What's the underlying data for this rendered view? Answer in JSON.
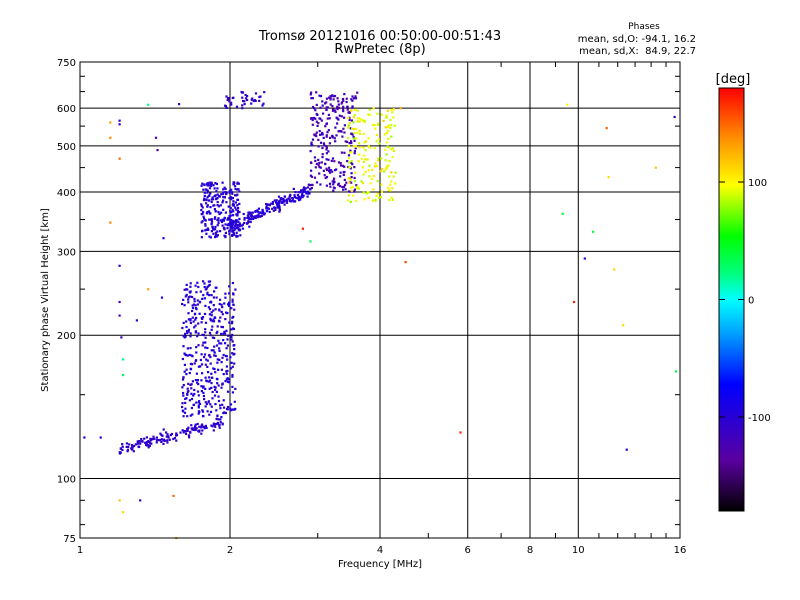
{
  "chart_data": {
    "type": "scatter",
    "title": "Tromsø 20121016 00:50:00-00:51:43",
    "subtitle": "RwPretec (8p)",
    "xlabel": "Frequency [MHz]",
    "ylabel": "Stationary phase Virtual Height [km]",
    "x_scale": "log",
    "y_scale": "log",
    "xlim": [
      1,
      16
    ],
    "ylim": [
      75,
      750
    ],
    "x_ticks": [
      1,
      2,
      4,
      6,
      8,
      10,
      16
    ],
    "y_ticks": [
      75,
      100,
      200,
      300,
      400,
      500,
      600,
      750
    ],
    "grid": true,
    "stats": {
      "heading": "Phases",
      "o_line": "mean, sd,O: -94.1, 16.2",
      "x_line": "mean, sd,X:  84.9, 22.7"
    },
    "colorbar": {
      "label": "[deg]",
      "range": [
        -180,
        180
      ],
      "ticks": [
        100,
        0,
        -100
      ],
      "tick_labels": [
        "100",
        "0",
        "-100"
      ]
    },
    "point_groups": [
      {
        "name": "trace-E-low",
        "x_range": [
          1.2,
          1.95
        ],
        "y_range": [
          112,
          135
        ],
        "n": 160,
        "phase": -105,
        "phase_sd": 10
      },
      {
        "name": "trace-F1-rise",
        "x_range": [
          1.6,
          2.05
        ],
        "y_range": [
          135,
          260
        ],
        "n": 420,
        "phase": -100,
        "phase_sd": 15
      },
      {
        "name": "trace-F1-band",
        "x_range": [
          1.75,
          2.1
        ],
        "y_range": [
          320,
          420
        ],
        "n": 260,
        "phase": -100,
        "phase_sd": 12
      },
      {
        "name": "trace-F2-shelf",
        "x_range": [
          2.0,
          2.9
        ],
        "y_range": [
          330,
          420
        ],
        "n": 200,
        "phase": -100,
        "phase_sd": 12
      },
      {
        "name": "trace-F2-cusp",
        "x_range": [
          2.9,
          3.6
        ],
        "y_range": [
          400,
          650
        ],
        "n": 260,
        "phase": -120,
        "phase_sd": 15
      },
      {
        "name": "trace-X-mode",
        "x_range": [
          3.45,
          4.3
        ],
        "y_range": [
          380,
          600
        ],
        "n": 180,
        "phase": 95,
        "phase_sd": 15
      },
      {
        "name": "trace-high-cluster",
        "x_range": [
          1.95,
          2.35
        ],
        "y_range": [
          600,
          650
        ],
        "n": 40,
        "phase": -105,
        "phase_sd": 12
      }
    ],
    "isolated_points": [
      {
        "x": 1.2,
        "y": 565,
        "phase": -110
      },
      {
        "x": 1.2,
        "y": 555,
        "phase": -110
      },
      {
        "x": 1.15,
        "y": 560,
        "phase": 130
      },
      {
        "x": 1.15,
        "y": 520,
        "phase": 140
      },
      {
        "x": 1.2,
        "y": 470,
        "phase": 150
      },
      {
        "x": 1.37,
        "y": 610,
        "phase": 20
      },
      {
        "x": 1.42,
        "y": 520,
        "phase": -120
      },
      {
        "x": 1.43,
        "y": 490,
        "phase": -130
      },
      {
        "x": 1.58,
        "y": 612,
        "phase": -110
      },
      {
        "x": 1.15,
        "y": 345,
        "phase": 140
      },
      {
        "x": 1.2,
        "y": 280,
        "phase": -110
      },
      {
        "x": 1.2,
        "y": 235,
        "phase": -120
      },
      {
        "x": 1.2,
        "y": 220,
        "phase": -125
      },
      {
        "x": 1.21,
        "y": 198,
        "phase": -115
      },
      {
        "x": 1.22,
        "y": 178,
        "phase": 20
      },
      {
        "x": 1.22,
        "y": 165,
        "phase": 30
      },
      {
        "x": 1.37,
        "y": 250,
        "phase": 130
      },
      {
        "x": 1.3,
        "y": 215,
        "phase": -110
      },
      {
        "x": 1.47,
        "y": 320,
        "phase": -100
      },
      {
        "x": 1.46,
        "y": 240,
        "phase": -100
      },
      {
        "x": 1.2,
        "y": 90,
        "phase": 120
      },
      {
        "x": 1.22,
        "y": 85,
        "phase": 110
      },
      {
        "x": 1.32,
        "y": 90,
        "phase": -110
      },
      {
        "x": 1.54,
        "y": 92,
        "phase": 150
      },
      {
        "x": 1.56,
        "y": 75,
        "phase": 130
      },
      {
        "x": 1.02,
        "y": 122,
        "phase": -90
      },
      {
        "x": 1.1,
        "y": 122,
        "phase": -95
      },
      {
        "x": 2.8,
        "y": 335,
        "phase": 170
      },
      {
        "x": 2.9,
        "y": 315,
        "phase": 30
      },
      {
        "x": 4.5,
        "y": 285,
        "phase": 160
      },
      {
        "x": 4.4,
        "y": 600,
        "phase": 130
      },
      {
        "x": 5.8,
        "y": 125,
        "phase": 170
      },
      {
        "x": 9.3,
        "y": 360,
        "phase": 40
      },
      {
        "x": 9.5,
        "y": 610,
        "phase": 100
      },
      {
        "x": 9.8,
        "y": 235,
        "phase": 170
      },
      {
        "x": 10.3,
        "y": 290,
        "phase": -100
      },
      {
        "x": 10.7,
        "y": 330,
        "phase": 40
      },
      {
        "x": 11.4,
        "y": 545,
        "phase": 150
      },
      {
        "x": 11.5,
        "y": 430,
        "phase": 110
      },
      {
        "x": 11.8,
        "y": 275,
        "phase": 110
      },
      {
        "x": 12.3,
        "y": 210,
        "phase": 110
      },
      {
        "x": 12.5,
        "y": 115,
        "phase": -100
      },
      {
        "x": 14.3,
        "y": 450,
        "phase": 120
      },
      {
        "x": 15.6,
        "y": 575,
        "phase": -110
      },
      {
        "x": 15.7,
        "y": 168,
        "phase": 40
      }
    ]
  }
}
